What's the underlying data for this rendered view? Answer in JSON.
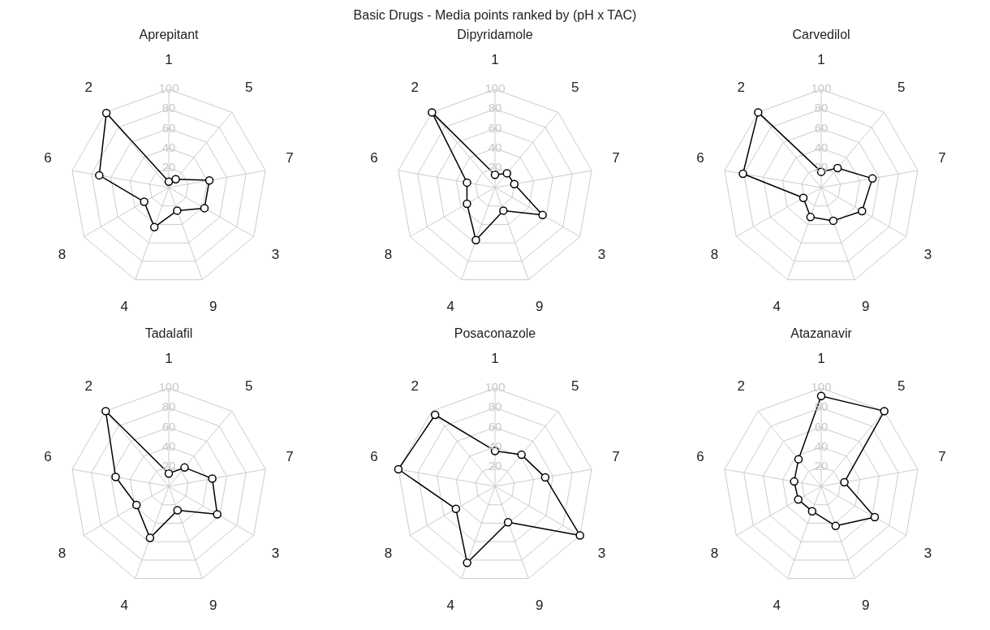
{
  "chart_data": [
    {
      "type": "radar",
      "title": "Aprepitant",
      "annotations": [
        "Basic Drugs - Media points ranked by (pH x TAC)"
      ],
      "categories": [
        "1",
        "5",
        "7",
        "3",
        "9",
        "4",
        "8",
        "6",
        "2"
      ],
      "ylim": [
        0,
        100
      ],
      "yticks": [
        20,
        40,
        60,
        80,
        100
      ],
      "grid": true,
      "marker": "circle",
      "line_style": "solid",
      "legend": false,
      "series": [
        {
          "color": "#000000",
          "values": [
            6,
            11,
            42,
            42,
            25,
            43,
            29,
            72,
            99
          ]
        }
      ]
    },
    {
      "type": "radar",
      "title": "Dipyridamole",
      "categories": [
        "1",
        "5",
        "7",
        "3",
        "9",
        "4",
        "8",
        "6",
        "2"
      ],
      "ylim": [
        0,
        100
      ],
      "yticks": [
        20,
        40,
        60,
        80,
        100
      ],
      "grid": true,
      "marker": "circle",
      "line_style": "solid",
      "legend": false,
      "series": [
        {
          "color": "#000000",
          "values": [
            13,
            19,
            20,
            56,
            25,
            57,
            33,
            29,
            100
          ]
        }
      ]
    },
    {
      "type": "radar",
      "title": "Carvedilol",
      "categories": [
        "1",
        "5",
        "7",
        "3",
        "9",
        "4",
        "8",
        "6",
        "2"
      ],
      "ylim": [
        0,
        100
      ],
      "yticks": [
        20,
        40,
        60,
        80,
        100
      ],
      "grid": true,
      "marker": "circle",
      "line_style": "solid",
      "legend": false,
      "series": [
        {
          "color": "#000000",
          "values": [
            16,
            26,
            53,
            48,
            36,
            32,
            21,
            81,
            100
          ]
        }
      ]
    },
    {
      "type": "radar",
      "title": "Tadalafil",
      "categories": [
        "1",
        "5",
        "7",
        "3",
        "9",
        "4",
        "8",
        "6",
        "2"
      ],
      "ylim": [
        0,
        100
      ],
      "yticks": [
        20,
        40,
        60,
        80,
        100
      ],
      "grid": true,
      "marker": "circle",
      "line_style": "solid",
      "legend": false,
      "series": [
        {
          "color": "#000000",
          "values": [
            13,
            25,
            45,
            57,
            26,
            56,
            38,
            55,
            100
          ]
        }
      ]
    },
    {
      "type": "radar",
      "title": "Posaconazole",
      "categories": [
        "1",
        "5",
        "7",
        "3",
        "9",
        "4",
        "8",
        "6",
        "2"
      ],
      "ylim": [
        0,
        100
      ],
      "yticks": [
        20,
        40,
        60,
        80,
        100
      ],
      "grid": true,
      "marker": "circle",
      "line_style": "solid",
      "legend": false,
      "series": [
        {
          "color": "#000000",
          "values": [
            36,
            42,
            52,
            100,
            39,
            83,
            46,
            100,
            95
          ]
        }
      ]
    },
    {
      "type": "radar",
      "title": "Atazanavir",
      "categories": [
        "1",
        "5",
        "7",
        "3",
        "9",
        "4",
        "8",
        "6",
        "2"
      ],
      "ylim": [
        0,
        100
      ],
      "yticks": [
        20,
        40,
        60,
        80,
        100
      ],
      "grid": true,
      "marker": "circle",
      "line_style": "solid",
      "legend": false,
      "series": [
        {
          "color": "#000000",
          "values": [
            92,
            100,
            24,
            63,
            43,
            27,
            27,
            28,
            36
          ]
        }
      ]
    }
  ]
}
